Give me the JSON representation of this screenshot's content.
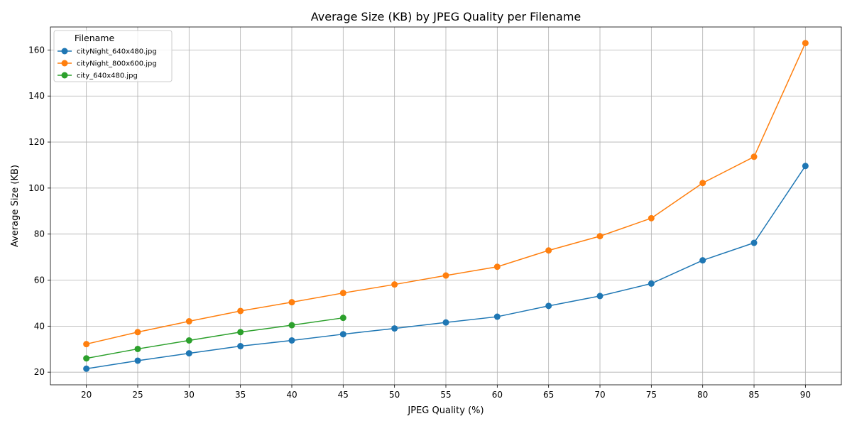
{
  "chart_data": {
    "type": "line",
    "title": "Average Size (KB) by JPEG Quality per Filename",
    "xlabel": "JPEG Quality (%)",
    "ylabel": "Average Size (KB)",
    "x_ticks": [
      20,
      25,
      30,
      35,
      40,
      45,
      50,
      55,
      60,
      65,
      70,
      75,
      80,
      85,
      90
    ],
    "y_ticks": [
      20,
      40,
      60,
      80,
      100,
      120,
      140,
      160
    ],
    "xlim": [
      16.5,
      93.5
    ],
    "ylim": [
      14.5,
      170
    ],
    "grid": true,
    "legend": {
      "title": "Filename",
      "position": "top-left"
    },
    "series": [
      {
        "name": "cityNight_640x480.jpg",
        "color": "#1f77b4",
        "x": [
          20,
          25,
          30,
          35,
          40,
          45,
          50,
          55,
          60,
          65,
          70,
          75,
          80,
          85,
          90
        ],
        "values": [
          21.5,
          25,
          28.2,
          31.3,
          33.8,
          36.5,
          39,
          41.6,
          44.1,
          48.8,
          53.1,
          58.5,
          68.6,
          76.2,
          109.6
        ]
      },
      {
        "name": "cityNight_800x600.jpg",
        "color": "#ff7f0e",
        "x": [
          20,
          25,
          30,
          35,
          40,
          45,
          50,
          55,
          60,
          65,
          70,
          75,
          80,
          85,
          90
        ],
        "values": [
          32.2,
          37.4,
          42.1,
          46.6,
          50.4,
          54.4,
          58.1,
          62,
          65.8,
          72.9,
          79.1,
          86.9,
          102.2,
          113.6,
          163
        ]
      },
      {
        "name": "city_640x480.jpg",
        "color": "#2ca02c",
        "x": [
          20,
          25,
          30,
          35,
          40,
          45
        ],
        "values": [
          26,
          30.1,
          33.8,
          37.4,
          40.4,
          43.6
        ]
      }
    ]
  }
}
